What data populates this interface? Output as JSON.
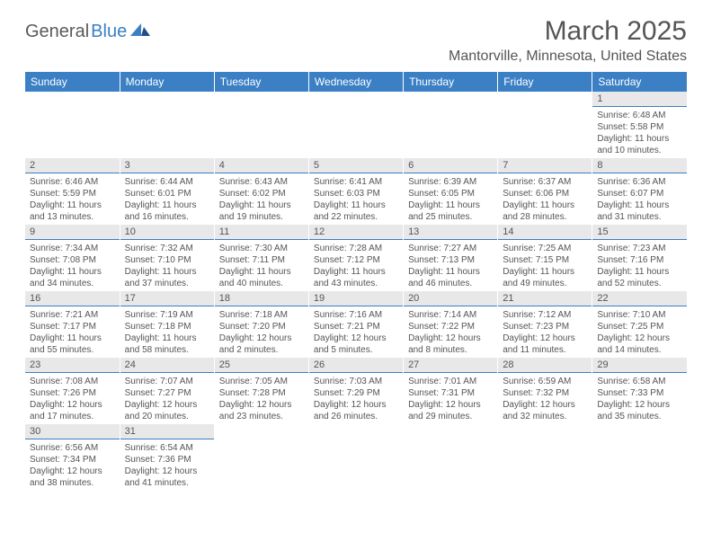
{
  "logo": {
    "general": "General",
    "blue": "Blue"
  },
  "title": "March 2025",
  "location": "Mantorville, Minnesota, United States",
  "weekdays": [
    "Sunday",
    "Monday",
    "Tuesday",
    "Wednesday",
    "Thursday",
    "Friday",
    "Saturday"
  ],
  "colors": {
    "header_bg": "#3b7fc4",
    "header_text": "#ffffff",
    "daynum_bg": "#e8e8e8",
    "daynum_border": "#3b7fc4",
    "body_text": "#555555"
  },
  "weeks": [
    [
      null,
      null,
      null,
      null,
      null,
      null,
      {
        "n": "1",
        "sr": "6:48 AM",
        "ss": "5:58 PM",
        "dl": "11 hours and 10 minutes."
      }
    ],
    [
      {
        "n": "2",
        "sr": "6:46 AM",
        "ss": "5:59 PM",
        "dl": "11 hours and 13 minutes."
      },
      {
        "n": "3",
        "sr": "6:44 AM",
        "ss": "6:01 PM",
        "dl": "11 hours and 16 minutes."
      },
      {
        "n": "4",
        "sr": "6:43 AM",
        "ss": "6:02 PM",
        "dl": "11 hours and 19 minutes."
      },
      {
        "n": "5",
        "sr": "6:41 AM",
        "ss": "6:03 PM",
        "dl": "11 hours and 22 minutes."
      },
      {
        "n": "6",
        "sr": "6:39 AM",
        "ss": "6:05 PM",
        "dl": "11 hours and 25 minutes."
      },
      {
        "n": "7",
        "sr": "6:37 AM",
        "ss": "6:06 PM",
        "dl": "11 hours and 28 minutes."
      },
      {
        "n": "8",
        "sr": "6:36 AM",
        "ss": "6:07 PM",
        "dl": "11 hours and 31 minutes."
      }
    ],
    [
      {
        "n": "9",
        "sr": "7:34 AM",
        "ss": "7:08 PM",
        "dl": "11 hours and 34 minutes."
      },
      {
        "n": "10",
        "sr": "7:32 AM",
        "ss": "7:10 PM",
        "dl": "11 hours and 37 minutes."
      },
      {
        "n": "11",
        "sr": "7:30 AM",
        "ss": "7:11 PM",
        "dl": "11 hours and 40 minutes."
      },
      {
        "n": "12",
        "sr": "7:28 AM",
        "ss": "7:12 PM",
        "dl": "11 hours and 43 minutes."
      },
      {
        "n": "13",
        "sr": "7:27 AM",
        "ss": "7:13 PM",
        "dl": "11 hours and 46 minutes."
      },
      {
        "n": "14",
        "sr": "7:25 AM",
        "ss": "7:15 PM",
        "dl": "11 hours and 49 minutes."
      },
      {
        "n": "15",
        "sr": "7:23 AM",
        "ss": "7:16 PM",
        "dl": "11 hours and 52 minutes."
      }
    ],
    [
      {
        "n": "16",
        "sr": "7:21 AM",
        "ss": "7:17 PM",
        "dl": "11 hours and 55 minutes."
      },
      {
        "n": "17",
        "sr": "7:19 AM",
        "ss": "7:18 PM",
        "dl": "11 hours and 58 minutes."
      },
      {
        "n": "18",
        "sr": "7:18 AM",
        "ss": "7:20 PM",
        "dl": "12 hours and 2 minutes."
      },
      {
        "n": "19",
        "sr": "7:16 AM",
        "ss": "7:21 PM",
        "dl": "12 hours and 5 minutes."
      },
      {
        "n": "20",
        "sr": "7:14 AM",
        "ss": "7:22 PM",
        "dl": "12 hours and 8 minutes."
      },
      {
        "n": "21",
        "sr": "7:12 AM",
        "ss": "7:23 PM",
        "dl": "12 hours and 11 minutes."
      },
      {
        "n": "22",
        "sr": "7:10 AM",
        "ss": "7:25 PM",
        "dl": "12 hours and 14 minutes."
      }
    ],
    [
      {
        "n": "23",
        "sr": "7:08 AM",
        "ss": "7:26 PM",
        "dl": "12 hours and 17 minutes."
      },
      {
        "n": "24",
        "sr": "7:07 AM",
        "ss": "7:27 PM",
        "dl": "12 hours and 20 minutes."
      },
      {
        "n": "25",
        "sr": "7:05 AM",
        "ss": "7:28 PM",
        "dl": "12 hours and 23 minutes."
      },
      {
        "n": "26",
        "sr": "7:03 AM",
        "ss": "7:29 PM",
        "dl": "12 hours and 26 minutes."
      },
      {
        "n": "27",
        "sr": "7:01 AM",
        "ss": "7:31 PM",
        "dl": "12 hours and 29 minutes."
      },
      {
        "n": "28",
        "sr": "6:59 AM",
        "ss": "7:32 PM",
        "dl": "12 hours and 32 minutes."
      },
      {
        "n": "29",
        "sr": "6:58 AM",
        "ss": "7:33 PM",
        "dl": "12 hours and 35 minutes."
      }
    ],
    [
      {
        "n": "30",
        "sr": "6:56 AM",
        "ss": "7:34 PM",
        "dl": "12 hours and 38 minutes."
      },
      {
        "n": "31",
        "sr": "6:54 AM",
        "ss": "7:36 PM",
        "dl": "12 hours and 41 minutes."
      },
      null,
      null,
      null,
      null,
      null
    ]
  ],
  "labels": {
    "sunrise": "Sunrise:",
    "sunset": "Sunset:",
    "daylight": "Daylight:"
  }
}
